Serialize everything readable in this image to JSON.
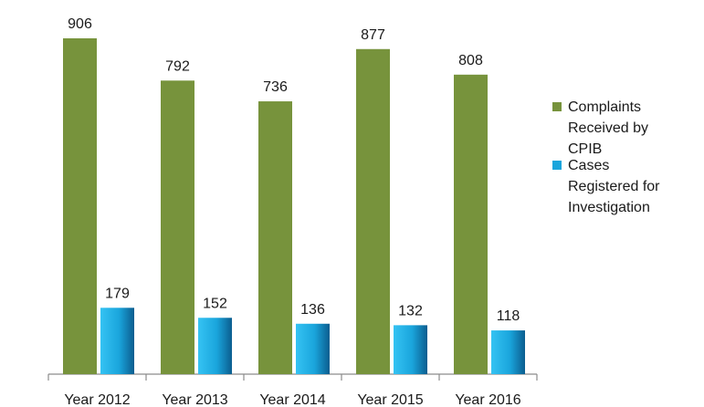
{
  "chart_data": {
    "type": "bar",
    "categories": [
      "Year 2012",
      "Year 2013",
      "Year 2014",
      "Year 2015",
      "Year 2016"
    ],
    "series": [
      {
        "name": "Complaints Received by CPIB",
        "legend_lines": [
          "Complaints",
          "Received by",
          "CPIB"
        ],
        "values": [
          906,
          792,
          736,
          877,
          808
        ],
        "color": "#77933c"
      },
      {
        "name": "Cases Registered for Investigation",
        "legend_lines": [
          "Cases",
          "Registered for",
          "Investigation"
        ],
        "values": [
          179,
          152,
          136,
          132,
          118
        ],
        "color": "#1aa5dc"
      }
    ],
    "data_labels": true,
    "ylim": [
      0,
      906
    ],
    "grid": false,
    "legend_position": "right",
    "title": "",
    "xlabel": "",
    "ylabel": ""
  }
}
